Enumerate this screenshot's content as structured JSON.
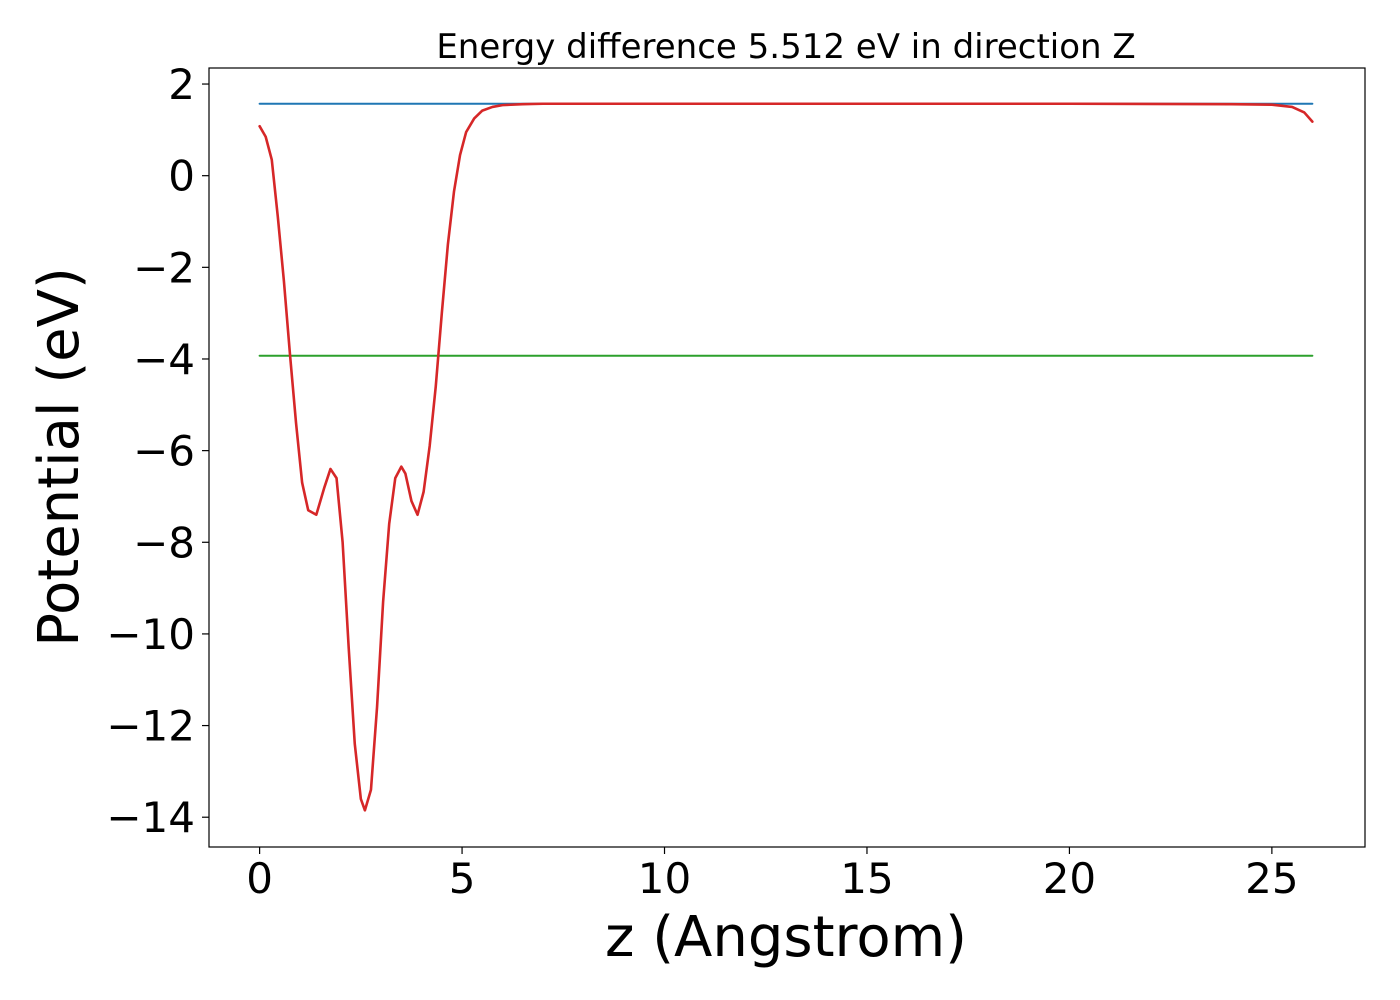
{
  "chart_data": {
    "type": "line",
    "title": "Energy difference 5.512 eV in direction Z",
    "xlabel": "z (Angstrom)",
    "ylabel": "Potential (eV)",
    "xlim": [
      -1.25,
      27.3
    ],
    "ylim": [
      -14.65,
      2.35
    ],
    "xticks": [
      {
        "value": 0,
        "label": "0"
      },
      {
        "value": 5,
        "label": "5"
      },
      {
        "value": 10,
        "label": "10"
      },
      {
        "value": 15,
        "label": "15"
      },
      {
        "value": 20,
        "label": "20"
      },
      {
        "value": 25,
        "label": "25"
      }
    ],
    "yticks": [
      {
        "value": 2,
        "label": "2"
      },
      {
        "value": 0,
        "label": "0"
      },
      {
        "value": -2,
        "label": "−2"
      },
      {
        "value": -4,
        "label": "−4"
      },
      {
        "value": -6,
        "label": "−6"
      },
      {
        "value": -8,
        "label": "−8"
      },
      {
        "value": -10,
        "label": "−10"
      },
      {
        "value": -12,
        "label": "−12"
      },
      {
        "value": -14,
        "label": "−14"
      }
    ],
    "grid": false,
    "series": [
      {
        "color": "#1f77b4",
        "x": [
          0,
          26
        ],
        "y": [
          1.57,
          1.57
        ]
      },
      {
        "color": "#2ca02c",
        "x": [
          0,
          26
        ],
        "y": [
          -3.93,
          -3.93
        ]
      },
      {
        "color": "#d62728",
        "x": [
          0,
          0.15,
          0.3,
          0.45,
          0.6,
          0.75,
          0.9,
          1.05,
          1.2,
          1.4,
          1.6,
          1.75,
          1.9,
          2.05,
          2.2,
          2.35,
          2.5,
          2.6,
          2.75,
          2.9,
          3.05,
          3.2,
          3.35,
          3.5,
          3.6,
          3.75,
          3.9,
          4.05,
          4.2,
          4.35,
          4.5,
          4.65,
          4.8,
          4.95,
          5.1,
          5.3,
          5.5,
          5.75,
          6.0,
          6.5,
          7.0,
          8.0,
          10,
          15,
          20,
          24,
          25,
          25.5,
          25.8,
          26
        ],
        "y": [
          1.08,
          0.85,
          0.35,
          -0.9,
          -2.3,
          -3.9,
          -5.4,
          -6.7,
          -7.3,
          -7.4,
          -6.8,
          -6.4,
          -6.6,
          -8.0,
          -10.3,
          -12.4,
          -13.6,
          -13.85,
          -13.4,
          -11.6,
          -9.3,
          -7.6,
          -6.6,
          -6.35,
          -6.5,
          -7.1,
          -7.4,
          -6.9,
          -5.9,
          -4.6,
          -3.0,
          -1.5,
          -0.35,
          0.45,
          0.95,
          1.25,
          1.42,
          1.5,
          1.54,
          1.56,
          1.57,
          1.57,
          1.57,
          1.57,
          1.57,
          1.56,
          1.55,
          1.5,
          1.38,
          1.18
        ]
      }
    ]
  }
}
